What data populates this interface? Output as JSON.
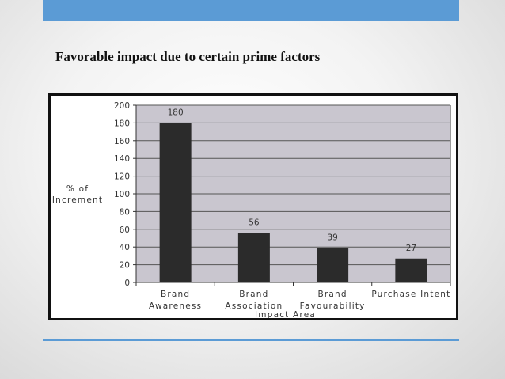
{
  "slide": {
    "title": "Favorable impact due to certain prime factors"
  },
  "colors": {
    "top_bar": "#5b9bd5",
    "plot_bg": "#c9c6cf",
    "bar": "#2b2b2b"
  },
  "chart_data": {
    "type": "bar",
    "categories": [
      [
        "Brand",
        "Awareness"
      ],
      [
        "Brand",
        "Association"
      ],
      [
        "Brand",
        "Favourability"
      ],
      [
        "Purchase Intent"
      ]
    ],
    "values": [
      180,
      56,
      39,
      27
    ],
    "ylabel": [
      "% of",
      "Increment"
    ],
    "xlabel": "Impact Area",
    "ylim": [
      0,
      200
    ],
    "yticks": [
      0,
      20,
      40,
      60,
      80,
      100,
      120,
      140,
      160,
      180,
      200
    ],
    "grid": true,
    "data_labels": true
  }
}
